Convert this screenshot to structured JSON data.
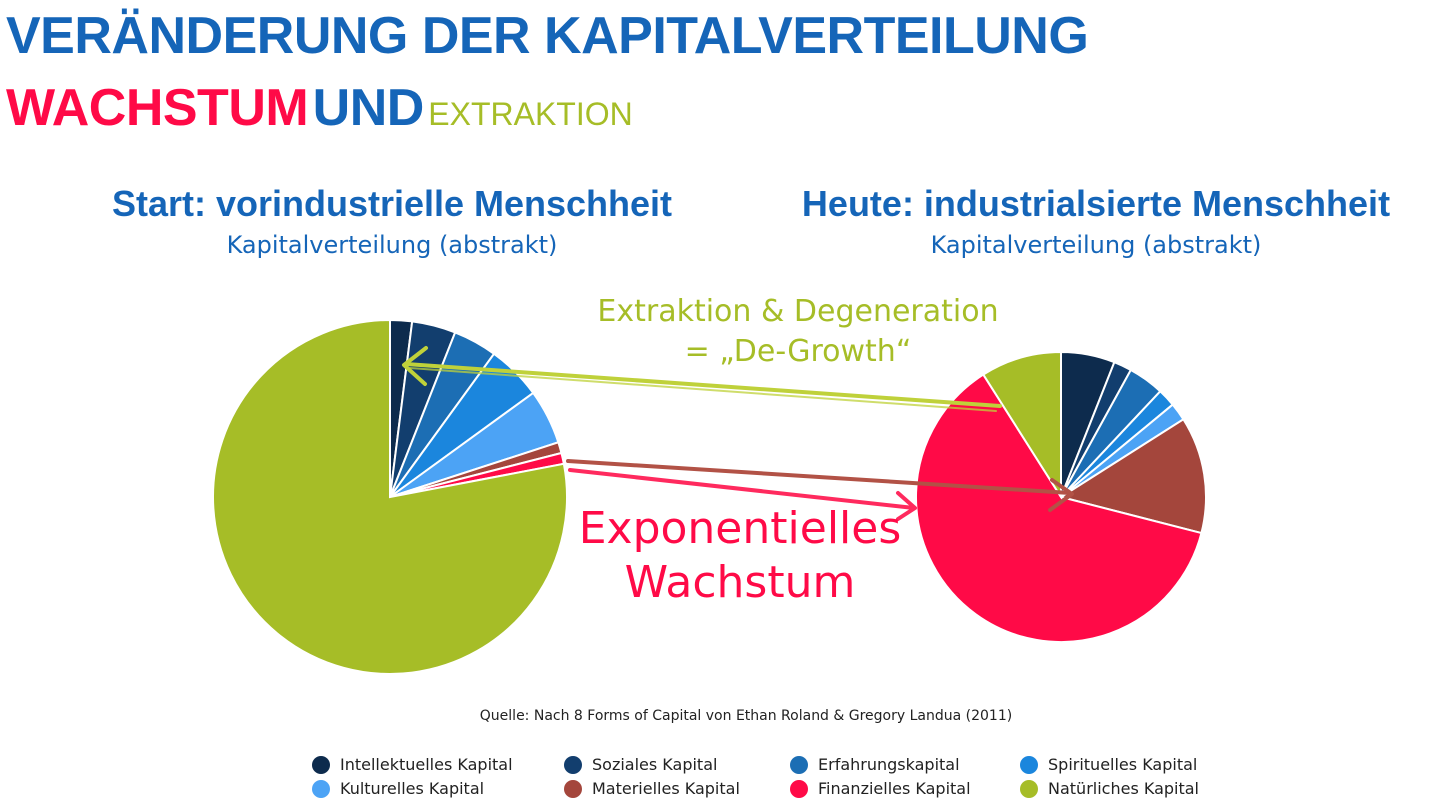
{
  "title": {
    "line1": "VERÄNDERUNG DER KAPITALVERTEILUNG",
    "line2_growth": "WACHSTUM",
    "line2_and": "UND",
    "line2_extraction": "EXTRAKTION"
  },
  "annotations": {
    "extraction_line1": "Extraktion & Degeneration",
    "extraction_line2": "= „De-Growth“",
    "growth_line1": "Exponentielles",
    "growth_line2": "Wachstum"
  },
  "source": "Quelle: Nach 8 Forms of Capital von Ethan Roland & Gregory Landua (2011)",
  "colors": {
    "Intellektuelles Kapital": "#0d2b4d",
    "Soziales Kapital": "#123e6e",
    "Erfahrungskapital": "#1c6eb4",
    "Spirituelles Kapital": "#1b86dd",
    "Kulturelles Kapital": "#4ca3f5",
    "Materielles Kapital": "#a4463c",
    "Finanzielles Kapital": "#ff0a47",
    "Natürliches Kapital": "#a6bd27"
  },
  "legend": [
    "Intellektuelles Kapital",
    "Soziales Kapital",
    "Erfahrungskapital",
    "Spirituelles Kapital",
    "Kulturelles Kapital",
    "Materielles Kapital",
    "Finanzielles Kapital",
    "Natürliches Kapital"
  ],
  "chart_data": [
    {
      "type": "pie",
      "title": "Start: vorindustrielle Menschheit",
      "subtitle": "Kapitalverteilung (abstrakt)",
      "categories": [
        "Intellektuelles Kapital",
        "Soziales Kapital",
        "Erfahrungskapital",
        "Spirituelles Kapital",
        "Kulturelles Kapital",
        "Materielles Kapital",
        "Finanzielles Kapital",
        "Natürliches Kapital"
      ],
      "values": [
        2,
        4,
        4,
        5,
        5,
        1,
        1,
        78
      ],
      "legend": "bottom"
    },
    {
      "type": "pie",
      "title": "Heute: industrialsierte Menschheit",
      "subtitle": "Kapitalverteilung (abstrakt)",
      "categories": [
        "Intellektuelles Kapital",
        "Soziales Kapital",
        "Erfahrungskapital",
        "Spirituelles Kapital",
        "Kulturelles Kapital",
        "Materielles Kapital",
        "Finanzielles Kapital",
        "Natürliches Kapital"
      ],
      "values": [
        6,
        2,
        4,
        2,
        2,
        13,
        62,
        9
      ],
      "legend": "bottom"
    }
  ]
}
